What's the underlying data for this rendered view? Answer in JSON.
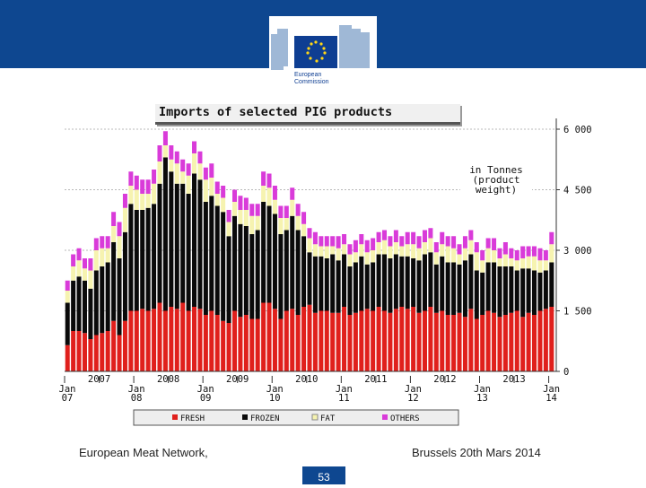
{
  "header": {
    "logo_line1": "European",
    "logo_line2": "Commission"
  },
  "footer": {
    "left_text": "European Meat Network,",
    "right_text": "Brussels 20th Mars 2014",
    "page_number": "53"
  },
  "chart_data": {
    "type": "bar",
    "stacked": true,
    "title": "Imports of selected PIG products",
    "unit_label": [
      "in Tonnes",
      "(product",
      "weight)"
    ],
    "ylim": [
      0,
      6000
    ],
    "yticks": [
      {
        "value": 0,
        "label": "0"
      },
      {
        "value": 1500,
        "label": "1 500"
      },
      {
        "value": 3000,
        "label": "3 000"
      },
      {
        "value": 4500,
        "label": "4 500"
      },
      {
        "value": 6000,
        "label": "6 000"
      }
    ],
    "x_month_labels": [
      {
        "index": 0,
        "line1": "Jan",
        "line2": "07"
      },
      {
        "index": 12,
        "line1": "Jan",
        "line2": "08"
      },
      {
        "index": 24,
        "line1": "Jan",
        "line2": "09"
      },
      {
        "index": 36,
        "line1": "Jan",
        "line2": "10"
      },
      {
        "index": 48,
        "line1": "Jan",
        "line2": "11"
      },
      {
        "index": 60,
        "line1": "Jan",
        "line2": "12"
      },
      {
        "index": 72,
        "line1": "Jan",
        "line2": "13"
      },
      {
        "index": 84,
        "line1": "Jan",
        "line2": "14"
      }
    ],
    "x_year_labels": [
      "2007",
      "2008",
      "2009",
      "2010",
      "2011",
      "2012",
      "2013"
    ],
    "legend": [
      "FRESH",
      "FROZEN",
      "FAT",
      "OTHERS"
    ],
    "colors": {
      "FRESH": "#e0201c",
      "FROZEN": "#0a0a0a",
      "FAT": "#f6f3b0",
      "OTHERS": "#d93bd9"
    },
    "series": [
      {
        "name": "FRESH",
        "values": [
          650,
          1000,
          1000,
          950,
          800,
          900,
          950,
          1000,
          1250,
          900,
          1250,
          1500,
          1500,
          1550,
          1500,
          1550,
          1700,
          1500,
          1600,
          1550,
          1700,
          1500,
          1600,
          1550,
          1400,
          1500,
          1400,
          1250,
          1200,
          1500,
          1350,
          1400,
          1300,
          1300,
          1700,
          1700,
          1550,
          1300,
          1500,
          1550,
          1400,
          1600,
          1650,
          1450,
          1500,
          1500,
          1450,
          1450,
          1600,
          1400,
          1450,
          1500,
          1550,
          1500,
          1600,
          1500,
          1450,
          1550,
          1600,
          1550,
          1600,
          1450,
          1500,
          1600,
          1450,
          1500,
          1400,
          1400,
          1450,
          1350,
          1550,
          1300,
          1400,
          1500,
          1450,
          1350,
          1400,
          1450,
          1500,
          1350,
          1450,
          1400,
          1500,
          1550,
          1600
        ]
      },
      {
        "name": "FROZEN",
        "values": [
          1050,
          1250,
          1350,
          1300,
          1250,
          1600,
          1650,
          1700,
          1950,
          1900,
          2200,
          2650,
          2500,
          2450,
          2550,
          2600,
          2950,
          3800,
          3350,
          3100,
          2950,
          2900,
          3300,
          3200,
          2800,
          2850,
          2700,
          2700,
          2150,
          2350,
          2300,
          2200,
          2100,
          2200,
          2500,
          2400,
          2350,
          2100,
          2000,
          2300,
          2100,
          1750,
          1300,
          1400,
          1350,
          1300,
          1450,
          1300,
          1300,
          1200,
          1250,
          1350,
          1100,
          1200,
          1300,
          1400,
          1350,
          1350,
          1250,
          1300,
          1200,
          1300,
          1400,
          1350,
          1200,
          1350,
          1300,
          1300,
          1200,
          1400,
          1350,
          1200,
          1050,
          1200,
          1250,
          1250,
          1200,
          1150,
          1000,
          1200,
          1100,
          1100,
          950,
          950,
          1100
        ]
      },
      {
        "name": "FAT",
        "values": [
          300,
          350,
          400,
          300,
          450,
          500,
          450,
          350,
          400,
          550,
          600,
          450,
          500,
          400,
          350,
          500,
          550,
          300,
          300,
          500,
          300,
          450,
          500,
          400,
          550,
          450,
          300,
          350,
          350,
          350,
          350,
          400,
          450,
          350,
          400,
          450,
          350,
          400,
          300,
          400,
          350,
          300,
          350,
          300,
          250,
          300,
          200,
          300,
          250,
          300,
          250,
          300,
          300,
          300,
          300,
          350,
          300,
          300,
          250,
          300,
          350,
          300,
          300,
          350,
          300,
          300,
          400,
          350,
          250,
          300,
          350,
          450,
          300,
          350,
          300,
          200,
          300,
          200,
          250,
          250,
          300,
          350,
          300,
          250,
          450
        ]
      },
      {
        "name": "OTHERS",
        "values": [
          250,
          300,
          300,
          250,
          300,
          300,
          300,
          300,
          350,
          350,
          350,
          350,
          350,
          350,
          350,
          350,
          400,
          350,
          350,
          300,
          300,
          300,
          300,
          300,
          300,
          350,
          300,
          300,
          300,
          300,
          350,
          300,
          300,
          300,
          350,
          350,
          350,
          300,
          300,
          300,
          300,
          300,
          250,
          300,
          250,
          250,
          250,
          300,
          250,
          250,
          300,
          250,
          300,
          300,
          250,
          250,
          250,
          300,
          250,
          300,
          300,
          300,
          300,
          250,
          250,
          300,
          250,
          300,
          250,
          300,
          250,
          250,
          250,
          250,
          300,
          250,
          300,
          250,
          250,
          300,
          250,
          250,
          300,
          250,
          300
        ]
      }
    ]
  }
}
